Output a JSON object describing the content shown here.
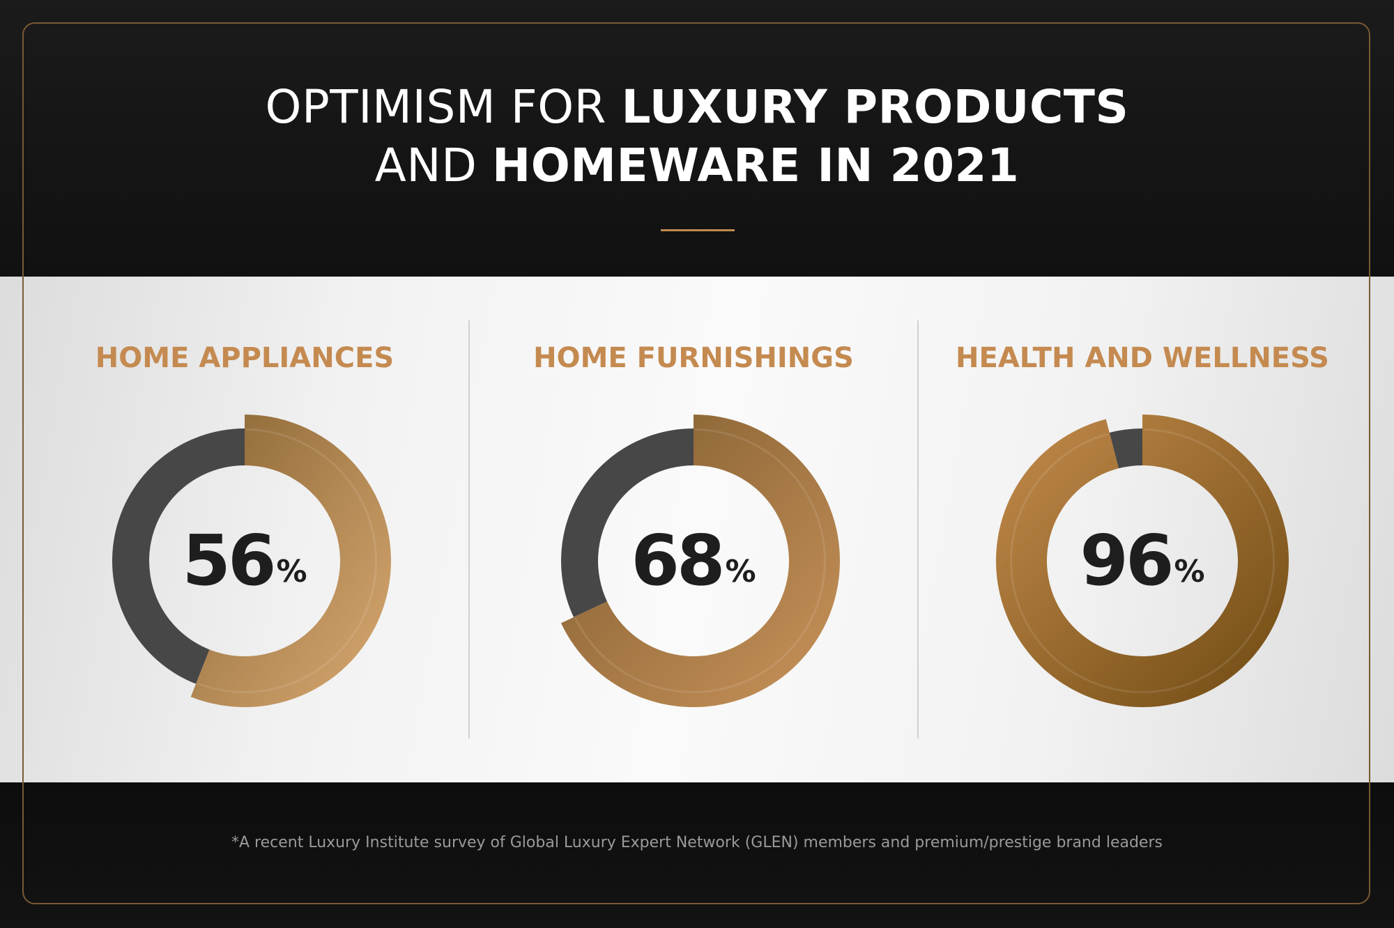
{
  "header": {
    "title_line1_light": "OPTIMISM FOR ",
    "title_line1_bold": "LUXURY PRODUCTS",
    "title_line2_light": "AND ",
    "title_line2_bold": "HOMEWARE IN 2021"
  },
  "colors": {
    "gold": "#c48a50",
    "dark_track": "#474747",
    "background_dark": "#141414"
  },
  "chart_data": [
    {
      "type": "pie",
      "title": "HOME APPLIANCES",
      "values": [
        56,
        44
      ],
      "value_label": "56",
      "unit": "%"
    },
    {
      "type": "pie",
      "title": "HOME FURNISHINGS",
      "values": [
        68,
        32
      ],
      "value_label": "68",
      "unit": "%"
    },
    {
      "type": "pie",
      "title": "HEALTH AND WELLNESS",
      "values": [
        96,
        4
      ],
      "value_label": "96",
      "unit": "%"
    }
  ],
  "footer": {
    "note": "*A recent Luxury Institute survey of Global Luxury Expert Network (GLEN) members and premium/prestige brand leaders"
  }
}
